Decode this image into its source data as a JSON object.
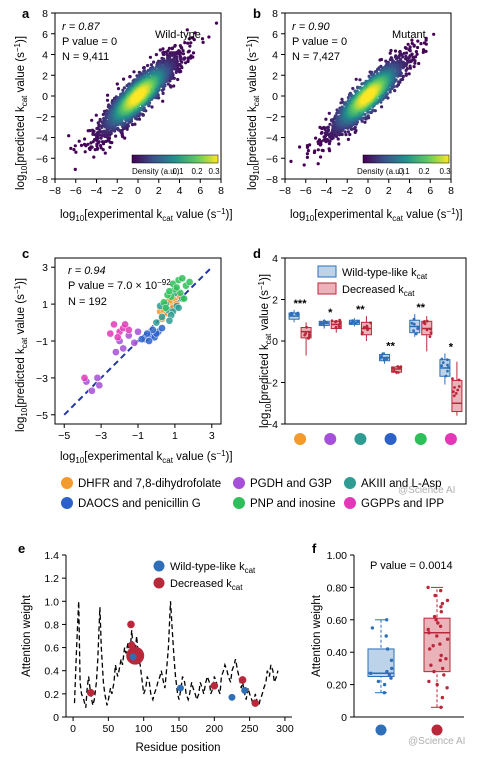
{
  "panels": {
    "a": {
      "letter": "a",
      "r_text": "r = 0.87",
      "p_text": "P value = 0",
      "n_text": "N = 9,411",
      "label": "Wild-type",
      "colorbar_label": "Density (a.u.)",
      "colorbar_ticks": [
        "0.1",
        "0.2",
        "0.3"
      ]
    },
    "b": {
      "letter": "b",
      "r_text": "r = 0.90",
      "p_text": "P value = 0",
      "n_text": "N = 7,427",
      "label": "Mutant",
      "colorbar_label": "Density (a.u.)",
      "colorbar_ticks": [
        "0.1",
        "0.2",
        "0.3"
      ]
    },
    "c": {
      "letter": "c",
      "r_text": "r = 0.94",
      "p_text": "P value = 7.0 × 10",
      "p_exp": "−92",
      "n_text": "N = 192"
    },
    "d": {
      "letter": "d",
      "legend": [
        "Wild-type-like k",
        "Decreased k"
      ],
      "legend_sub": "cat",
      "stars": [
        "***",
        "*",
        "**",
        "**",
        "**",
        "*"
      ]
    },
    "e": {
      "letter": "e",
      "legend": [
        "Wild-type-like k",
        "Decreased k"
      ],
      "legend_sub": "cat",
      "xlabel": "Residue position",
      "ylabel": "Attention weight"
    },
    "f": {
      "letter": "f",
      "p_text": "P value = 0.0014",
      "ylabel": "Attention weight"
    }
  },
  "axis_text": {
    "x_log_label": "log",
    "x_log_sub": "10",
    "x_label_main": "[experimental k",
    "x_label_sub": "cat",
    "x_label_tail": " value (s",
    "x_label_exp": "−1",
    "x_label_end": ")]",
    "y_label_main": "[predicted k",
    "y_label_tail": " value (s"
  },
  "legend_pairs": [
    {
      "color": "#f39a2e",
      "text": "DHFR and 7,8-dihydrofolate"
    },
    {
      "color": "#a64fd8",
      "text": "PGDH and G3P"
    },
    {
      "color": "#2e9c93",
      "text": "AKIII and L-Asp"
    },
    {
      "color": "#2a62c9",
      "text": "DAOCS and penicillin G"
    },
    {
      "color": "#2fbf5a",
      "text": "PNP and inosine"
    },
    {
      "color": "#e238b8",
      "text": "GGPPs and IPP"
    }
  ],
  "watermark": "@Science AI",
  "watermark2": "@Science AI",
  "colors": {
    "blue_box": "#bcd3ea",
    "blue_stroke": "#2e6fb7",
    "red_box": "#e9b3b9",
    "red_stroke": "#b8283a",
    "diag": "#2436a8"
  },
  "chart_data": [
    {
      "type": "scatter",
      "panel": "a",
      "description_series": "density-colored scatter",
      "xlim": [
        -8,
        8
      ],
      "ylim": [
        -8,
        8
      ],
      "xticks": [
        -8,
        -6,
        -4,
        -2,
        0,
        2,
        4,
        6,
        8
      ],
      "yticks": [
        -8,
        -6,
        -4,
        -2,
        0,
        2,
        4,
        6,
        8
      ],
      "r": 0.87,
      "N": 9411,
      "spread": 1.6
    },
    {
      "type": "scatter",
      "panel": "b",
      "xlim": [
        -8,
        8
      ],
      "ylim": [
        -8,
        8
      ],
      "xticks": [
        -8,
        -6,
        -4,
        -2,
        0,
        2,
        4,
        6,
        8
      ],
      "yticks": [
        -8,
        -6,
        -4,
        -2,
        0,
        2,
        4,
        6,
        8
      ],
      "r": 0.9,
      "N": 7427,
      "spread": 1.35
    },
    {
      "type": "scatter",
      "panel": "c",
      "xlim": [
        -5.5,
        3.5
      ],
      "ylim": [
        -5.5,
        3.5
      ],
      "xticks": [
        -5,
        -3,
        -1,
        1,
        3
      ],
      "yticks": [
        -5,
        -3,
        -1,
        1,
        3
      ],
      "series": [
        {
          "name": "DHFR and 7,8-dihydrofolate",
          "color": "#f39a2e",
          "points": [
            [
              0.2,
              0.6
            ],
            [
              0.5,
              0.9
            ],
            [
              0.8,
              1.1
            ],
            [
              1.0,
              1.3
            ],
            [
              0.6,
              0.5
            ],
            [
              0.9,
              0.8
            ],
            [
              1.2,
              1.5
            ],
            [
              0.3,
              0.2
            ],
            [
              0.7,
              1.2
            ],
            [
              1.1,
              1.0
            ],
            [
              0.4,
              0.7
            ],
            [
              1.3,
              1.4
            ]
          ]
        },
        {
          "name": "PGDH and G3P",
          "color": "#a64fd8",
          "points": [
            [
              -3.8,
              -3.2
            ],
            [
              -3.5,
              -3.7
            ],
            [
              -3.1,
              -3.4
            ],
            [
              -2.0,
              -1.0
            ],
            [
              -1.8,
              -1.4
            ],
            [
              -1.5,
              -0.7
            ],
            [
              -1.2,
              -1.1
            ],
            [
              -2.2,
              -1.6
            ],
            [
              -1.0,
              -0.5
            ],
            [
              -3.2,
              -3.0
            ]
          ]
        },
        {
          "name": "AKIII and L-Asp",
          "color": "#2e9c93",
          "points": [
            [
              0.3,
              0.3
            ],
            [
              0.6,
              0.7
            ],
            [
              0.9,
              0.6
            ],
            [
              1.1,
              0.9
            ],
            [
              0.0,
              0.0
            ],
            [
              0.5,
              1.0
            ],
            [
              1.4,
              1.3
            ],
            [
              0.8,
              0.4
            ],
            [
              0.2,
              0.9
            ],
            [
              1.0,
              1.6
            ],
            [
              0.7,
              0.1
            ],
            [
              1.2,
              0.8
            ]
          ]
        },
        {
          "name": "DAOCS and penicillin G",
          "color": "#2a62c9",
          "points": [
            [
              -0.6,
              -0.9
            ],
            [
              -0.3,
              -0.7
            ],
            [
              -0.1,
              -0.8
            ],
            [
              0.1,
              -0.5
            ],
            [
              -0.8,
              -0.9
            ],
            [
              -0.4,
              -1.0
            ],
            [
              0.0,
              -0.6
            ],
            [
              -0.2,
              -0.4
            ],
            [
              -0.5,
              -0.6
            ],
            [
              0.3,
              -0.3
            ]
          ]
        },
        {
          "name": "PNP and inosine",
          "color": "#2fbf5a",
          "points": [
            [
              0.4,
              1.1
            ],
            [
              0.8,
              1.4
            ],
            [
              1.0,
              1.8
            ],
            [
              1.3,
              1.6
            ],
            [
              1.6,
              2.0
            ],
            [
              0.6,
              1.5
            ],
            [
              0.9,
              2.1
            ],
            [
              1.5,
              1.3
            ],
            [
              1.2,
              2.3
            ],
            [
              1.8,
              2.2
            ],
            [
              0.5,
              0.8
            ],
            [
              1.1,
              1.9
            ],
            [
              0.7,
              1.7
            ],
            [
              1.4,
              2.4
            ]
          ]
        },
        {
          "name": "GGPPs and IPP",
          "color": "#e238b8",
          "points": [
            [
              -2.0,
              -0.5
            ],
            [
              -1.8,
              -0.3
            ],
            [
              -2.3,
              -0.1
            ],
            [
              -1.5,
              -0.4
            ],
            [
              -3.9,
              -3.0
            ],
            [
              -2.1,
              -0.8
            ],
            [
              -1.7,
              -0.1
            ],
            [
              -2.5,
              -0.6
            ]
          ]
        }
      ]
    },
    {
      "type": "box",
      "panel": "d",
      "ylim": [
        -4,
        4
      ],
      "yticks": [
        -4,
        -2,
        0,
        2,
        4
      ],
      "series": [
        {
          "name": "Wild-type-like kcat",
          "boxes": [
            {
              "q1": 1.05,
              "med": 1.2,
              "q3": 1.35,
              "lo": 0.9,
              "hi": 1.5
            },
            {
              "q1": 0.75,
              "med": 0.85,
              "q3": 0.95,
              "lo": 0.6,
              "hi": 1.05
            },
            {
              "q1": 0.8,
              "med": 0.9,
              "q3": 1.0,
              "lo": 0.7,
              "hi": 1.1
            },
            {
              "q1": -0.95,
              "med": -0.8,
              "q3": -0.65,
              "lo": -1.1,
              "hi": -0.55
            },
            {
              "q1": 0.4,
              "med": 0.7,
              "q3": 1.0,
              "lo": 0.2,
              "hi": 1.3
            },
            {
              "q1": -1.7,
              "med": -1.3,
              "q3": -0.9,
              "lo": -2.1,
              "hi": -0.6
            }
          ]
        },
        {
          "name": "Decreased kcat",
          "boxes": [
            {
              "q1": 0.15,
              "med": 0.45,
              "q3": 0.65,
              "lo": -0.7,
              "hi": 0.9
            },
            {
              "q1": 0.6,
              "med": 0.8,
              "q3": 0.95,
              "lo": 0.4,
              "hi": 1.0
            },
            {
              "q1": 0.3,
              "med": 0.6,
              "q3": 0.9,
              "lo": 0.0,
              "hi": 1.2
            },
            {
              "q1": -1.5,
              "med": -1.35,
              "q3": -1.25,
              "lo": -1.6,
              "hi": -1.2
            },
            {
              "q1": 0.3,
              "med": 0.6,
              "q3": 0.95,
              "lo": -0.5,
              "hi": 1.2
            },
            {
              "q1": -3.4,
              "med": -3.0,
              "q3": -1.9,
              "lo": -3.6,
              "hi": -1.0
            }
          ]
        }
      ]
    },
    {
      "type": "line",
      "panel": "e",
      "xlim": [
        -10,
        310
      ],
      "ylim": [
        0,
        1.4
      ],
      "xticks": [
        0,
        50,
        100,
        150,
        200,
        250,
        300
      ],
      "yticks": [
        0,
        0.2,
        0.4,
        0.6,
        0.8,
        1.0,
        1.2,
        1.4
      ],
      "x": [
        2,
        5,
        8,
        10,
        12,
        15,
        18,
        20,
        22,
        25,
        28,
        30,
        33,
        35,
        38,
        40,
        43,
        45,
        48,
        50,
        53,
        55,
        58,
        60,
        63,
        65,
        68,
        70,
        73,
        75,
        78,
        80,
        83,
        85,
        88,
        90,
        93,
        95,
        98,
        100,
        103,
        105,
        108,
        110,
        113,
        115,
        118,
        120,
        123,
        125,
        128,
        130,
        133,
        135,
        138,
        140,
        143,
        145,
        148,
        150,
        153,
        155,
        158,
        160,
        163,
        165,
        168,
        170,
        173,
        175,
        178,
        180,
        183,
        185,
        188,
        190,
        193,
        195,
        198,
        200,
        203,
        205,
        208,
        210,
        213,
        215,
        218,
        220,
        223,
        225,
        228,
        230,
        233,
        235,
        238,
        240,
        243,
        245,
        248,
        250,
        253,
        255,
        258,
        260,
        263,
        265,
        268,
        270,
        273,
        275,
        278,
        280,
        283,
        285,
        288,
        290
      ],
      "y": [
        0.12,
        0.6,
        1.0,
        0.3,
        0.2,
        0.15,
        0.08,
        0.25,
        0.35,
        0.2,
        0.1,
        0.15,
        0.3,
        0.5,
        0.95,
        0.6,
        0.3,
        0.2,
        0.1,
        0.15,
        0.25,
        0.2,
        0.3,
        0.45,
        0.35,
        0.4,
        0.5,
        0.45,
        0.6,
        0.55,
        0.65,
        0.5,
        0.75,
        0.6,
        0.55,
        0.7,
        0.5,
        0.45,
        0.3,
        0.2,
        0.25,
        0.35,
        0.3,
        0.2,
        0.15,
        0.2,
        0.25,
        0.3,
        0.35,
        0.4,
        0.3,
        0.25,
        0.45,
        0.6,
        1.0,
        0.8,
        0.5,
        0.35,
        0.2,
        0.15,
        0.25,
        0.35,
        0.3,
        0.2,
        0.15,
        0.2,
        0.3,
        0.25,
        0.2,
        0.15,
        0.2,
        0.3,
        0.25,
        0.2,
        0.3,
        0.35,
        0.3,
        0.2,
        0.25,
        0.35,
        0.3,
        0.25,
        0.2,
        0.35,
        0.4,
        0.45,
        0.4,
        0.35,
        0.3,
        0.4,
        0.45,
        0.5,
        0.4,
        0.35,
        0.25,
        0.3,
        0.2,
        0.15,
        0.25,
        0.2,
        0.15,
        0.1,
        0.2,
        0.15,
        0.1,
        0.15,
        0.2,
        0.25,
        0.3,
        0.4,
        0.35,
        0.45,
        0.4,
        0.3,
        0.35,
        0.4
      ],
      "markers_blue": [
        [
          85,
          0.52
        ],
        [
          152,
          0.25
        ],
        [
          225,
          0.17
        ],
        [
          243,
          0.23
        ]
      ],
      "markers_red": [
        [
          25,
          0.21
        ],
        [
          82,
          0.8
        ],
        [
          83,
          0.62
        ],
        [
          88,
          0.53
        ],
        [
          200,
          0.27
        ],
        [
          240,
          0.32
        ],
        [
          258,
          0.12
        ]
      ]
    },
    {
      "type": "box",
      "panel": "f",
      "ylim": [
        0,
        1.0
      ],
      "yticks": [
        0,
        0.2,
        0.4,
        0.6,
        0.8,
        1.0
      ],
      "series": [
        {
          "name": "Wild-type-like kcat",
          "q1": 0.25,
          "med": 0.27,
          "q3": 0.42,
          "lo": 0.15,
          "hi": 0.6,
          "points": [
            0.15,
            0.2,
            0.22,
            0.24,
            0.26,
            0.27,
            0.28,
            0.3,
            0.35,
            0.42,
            0.5,
            0.55,
            0.6
          ]
        },
        {
          "name": "Decreased kcat",
          "q1": 0.28,
          "med": 0.52,
          "q3": 0.61,
          "lo": 0.06,
          "hi": 0.8,
          "points": [
            0.06,
            0.12,
            0.18,
            0.22,
            0.26,
            0.3,
            0.32,
            0.35,
            0.38,
            0.42,
            0.45,
            0.48,
            0.5,
            0.52,
            0.54,
            0.56,
            0.58,
            0.6,
            0.62,
            0.65,
            0.68,
            0.7,
            0.72,
            0.75,
            0.78,
            0.8,
            0.44,
            0.36,
            0.28,
            0.2
          ]
        }
      ]
    }
  ]
}
